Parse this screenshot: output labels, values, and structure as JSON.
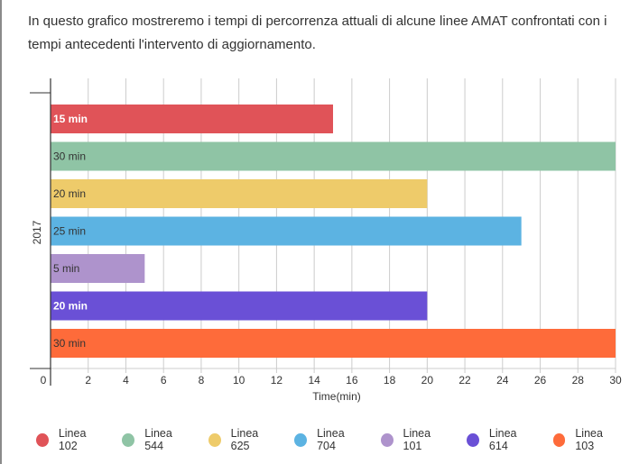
{
  "intro_text": "In questo grafico mostreremo i tempi di percorrenza attuali di alcune linee AMAT confrontati con i tempi antecedenti l'intervento di aggiornamento.",
  "chart_data": {
    "type": "bar",
    "orientation": "horizontal",
    "category": "2017",
    "xlabel": "Time(min)",
    "ylabel": "",
    "xlim": [
      0,
      30
    ],
    "x_ticks": [
      "0",
      "2",
      "4",
      "6",
      "8",
      "10",
      "12",
      "14",
      "16",
      "18",
      "20",
      "22",
      "24",
      "26",
      "28",
      "30"
    ],
    "grid": true,
    "legend_position": "bottom",
    "series": [
      {
        "name": "Linea 102",
        "value": 15,
        "label": "15 min",
        "color": "#e05358",
        "label_color": "#ffffff",
        "label_bold": true
      },
      {
        "name": "Linea 544",
        "value": 30,
        "label": "30 min",
        "color": "#8fc4a5",
        "label_color": "#333333",
        "label_bold": false
      },
      {
        "name": "Linea 625",
        "value": 20,
        "label": "20 min",
        "color": "#eecb6a",
        "label_color": "#333333",
        "label_bold": false
      },
      {
        "name": "Linea 704",
        "value": 25,
        "label": "25 min",
        "color": "#5cb3e2",
        "label_color": "#333333",
        "label_bold": false
      },
      {
        "name": "Linea 101",
        "value": 5,
        "label": "5 min",
        "color": "#ae93cc",
        "label_color": "#333333",
        "label_bold": false
      },
      {
        "name": "Linea 614",
        "value": 20,
        "label": "20 min",
        "color": "#6a50d6",
        "label_color": "#ffffff",
        "label_bold": true
      },
      {
        "name": "Linea 103",
        "value": 30,
        "label": "30 min",
        "color": "#fe6b3a",
        "label_color": "#333333",
        "label_bold": false
      }
    ]
  }
}
